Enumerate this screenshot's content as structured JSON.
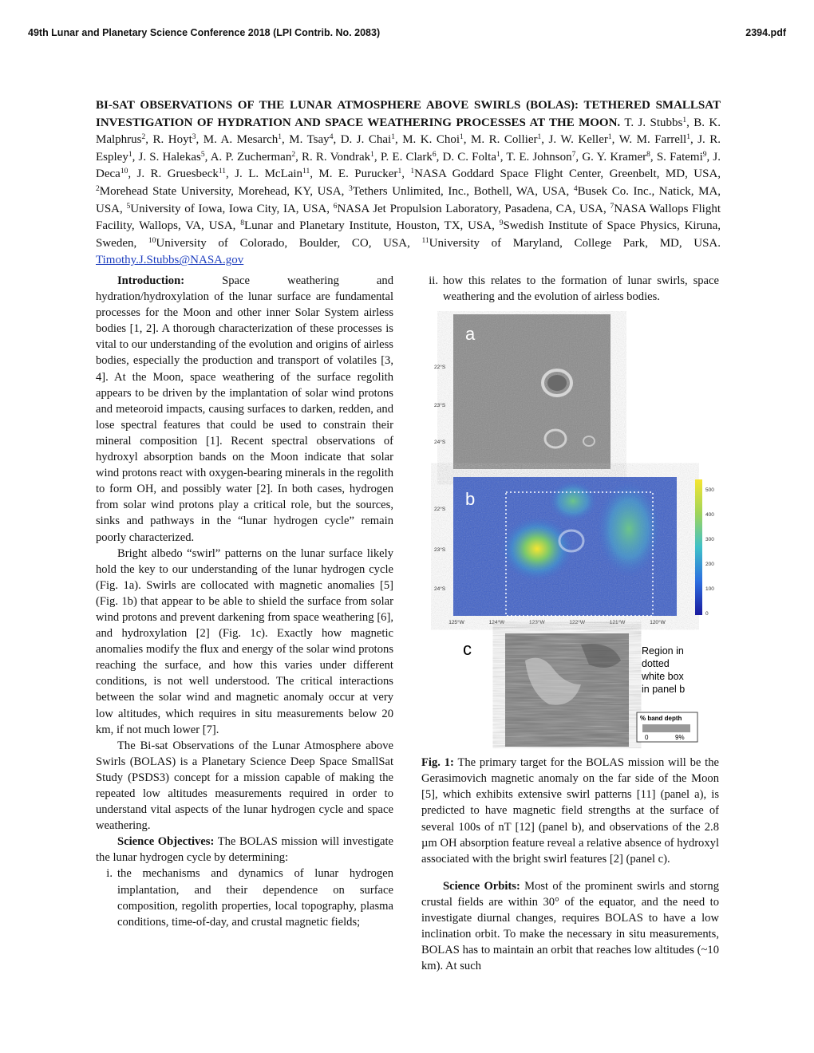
{
  "header": {
    "left": "49th Lunar and Planetary Science Conference 2018 (LPI Contrib. No. 2083)",
    "right": "2394.pdf"
  },
  "title": "BI-SAT OBSERVATIONS OF THE LUNAR ATMOSPHERE ABOVE SWIRLS (BOLAS): TETHERED SMALLSAT INVESTIGATION OF HYDRATION AND SPACE WEATHERING PROCESSES AT THE MOON.",
  "author_separator": ",",
  "authors": [
    {
      "name": "T. J. Stubbs",
      "aff": "1"
    },
    {
      "name": "B. K. Malphrus",
      "aff": "2"
    },
    {
      "name": "R. Hoyt",
      "aff": "3"
    },
    {
      "name": "M. A. Mesarch",
      "aff": "1"
    },
    {
      "name": "M. Tsay",
      "aff": "4"
    },
    {
      "name": "D. J. Chai",
      "aff": "1"
    },
    {
      "name": "M. K. Choi",
      "aff": "1"
    },
    {
      "name": "M. R. Collier",
      "aff": "1"
    },
    {
      "name": "J. W. Keller",
      "aff": "1"
    },
    {
      "name": "W. M. Farrell",
      "aff": "1"
    },
    {
      "name": "J. R. Espley",
      "aff": "1"
    },
    {
      "name": "J. S. Halekas",
      "aff": "5"
    },
    {
      "name": "A. P. Zucherman",
      "aff": "2"
    },
    {
      "name": "R. R. Vondrak",
      "aff": "1"
    },
    {
      "name": "P. E. Clark",
      "aff": "6"
    },
    {
      "name": "D. C. Folta",
      "aff": "1"
    },
    {
      "name": "T. E. Johnson",
      "aff": "7"
    },
    {
      "name": "G. Y. Kramer",
      "aff": "8"
    },
    {
      "name": "S. Fatemi",
      "aff": "9"
    },
    {
      "name": "J. Deca",
      "aff": "10"
    },
    {
      "name": "J. R. Gruesbeck",
      "aff": "11"
    },
    {
      "name": "J. L. McLain",
      "aff": "11"
    },
    {
      "name": "M. E. Purucker",
      "aff": "1"
    }
  ],
  "affiliations": [
    {
      "num": "1",
      "text": "NASA Goddard Space Flight Center, Greenbelt, MD, USA,"
    },
    {
      "num": "2",
      "text": "Morehead State University, Morehead, KY, USA,"
    },
    {
      "num": "3",
      "text": "Tethers Unlimited, Inc., Bothell, WA, USA,"
    },
    {
      "num": "4",
      "text": "Busek Co. Inc., Natick, MA, USA,"
    },
    {
      "num": "5",
      "text": "University of Iowa, Iowa City, IA, USA,"
    },
    {
      "num": "6",
      "text": "NASA Jet Propulsion Laboratory, Pasadena, CA, USA,"
    },
    {
      "num": "7",
      "text": "NASA Wallops Flight Facility, Wallops, VA, USA,"
    },
    {
      "num": "8",
      "text": "Lunar and Planetary Institute, Houston, TX, USA,"
    },
    {
      "num": "9",
      "text": "Swedish Institute of Space Physics, Kiruna, Sweden,"
    },
    {
      "num": "10",
      "text": "University of Colorado, Boulder, CO, USA,"
    },
    {
      "num": "11",
      "text": "University of Maryland, College Park, MD, USA."
    }
  ],
  "email": "Timothy.J.Stubbs@NASA.gov",
  "introduction": {
    "heading": "Introduction:",
    "paragraphs": [
      "Space weathering and hydration/hydroxylation of the lunar surface are fundamental processes for the Moon and other inner Solar System airless bodies [1, 2]. A thorough characterization of these processes is vital to our understanding of the evolution and origins of airless bodies, especially the production and transport of volatiles [3, 4]. At the Moon, space weathering of the surface regolith appears to be driven by the implantation of solar wind protons and meteoroid impacts, causing surfaces to darken, redden, and lose spectral features that could be used to constrain their mineral composition [1]. Recent spectral observations of hydroxyl absorption bands on the Moon indicate that solar wind protons react with oxygen-bearing minerals in the regolith to form OH, and possibly water [2]. In both cases, hydrogen from solar wind protons play a critical role, but the sources, sinks and pathways in the “lunar hydrogen cycle” remain poorly characterized.",
      "Bright albedo “swirl” patterns on the lunar surface likely hold the key to our understanding of the lunar hydrogen cycle (Fig. 1a). Swirls are collocated with magnetic anomalies [5] (Fig. 1b) that appear to be able to shield the surface from solar wind protons and prevent darkening from space weathering [6], and hydroxylation [2] (Fig. 1c). Exactly how magnetic anomalies modify the flux and energy of the solar wind protons reaching the surface, and how this varies under different conditions, is not well understood. The critical interactions between the solar wind and magnetic anomaly occur at very low altitudes, which requires in situ measurements below 20 km, if not much lower [7].",
      "The Bi-sat Observations of the Lunar Atmosphere above Swirls (BOLAS) is a Planetary Science Deep Space SmallSat Study (PSDS3) concept for a mission capable of making the repeated low altitudes measurements required in order to understand vital aspects of the lunar hydrogen cycle and space weathering."
    ]
  },
  "science_objectives": {
    "heading": "Science Objectives:",
    "text": "The BOLAS mission will investigate the lunar hydrogen cycle by determining:",
    "items": [
      {
        "num": "i.",
        "text": "the mechanisms and dynamics of lunar hydrogen implantation, and their dependence on surface composition, regolith properties, local topography, plasma conditions, time-of-day, and crustal magnetic fields;"
      },
      {
        "num": "ii.",
        "text": "how this relates to the formation of lunar swirls, space weathering and the evolution of airless bodies."
      }
    ]
  },
  "figure": {
    "panel_labels": [
      "a",
      "b",
      "c"
    ],
    "lat_ticks": [
      "22°S",
      "23°S",
      "24°S"
    ],
    "lon_ticks": [
      "125°W",
      "124°W",
      "123°W",
      "122°W",
      "121°W",
      "120°W"
    ],
    "colorbar_ticks": [
      "500",
      "400",
      "300",
      "200",
      "100",
      "0"
    ],
    "panel_c_note": [
      "Region in",
      "dotted",
      "white box",
      "in panel b"
    ],
    "legend_title": "% band depth",
    "legend_min": "0",
    "legend_max": "9%",
    "caption": {
      "label": "Fig. 1:",
      "text": "The primary target for the BOLAS mission will be the Gerasimovich magnetic anomaly on the far side of the Moon [5], which exhibits extensive swirl patterns [11] (panel a), is predicted to have magnetic field strengths at the surface of several 100s of nT [12] (panel b), and observations of the 2.8 µm OH absorption feature reveal a relative absence of hydroxyl associated with the bright swirl features [2] (panel c)."
    }
  },
  "science_orbits": {
    "heading": "Science Orbits:",
    "text": "Most of the prominent swirls and storng crustal fields are within 30° of the equator, and the need to investigate diurnal changes, requires BOLAS to have a low inclination orbit. To make the necessary in situ measurements, BOLAS has to maintain an orbit that reaches low altitudes (~10 km). At such"
  }
}
